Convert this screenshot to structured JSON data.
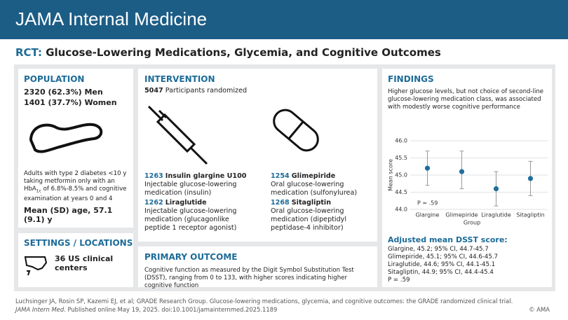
{
  "header": {
    "journal": "JAMA Internal Medicine"
  },
  "title": {
    "prefix": "RCT:",
    "text": "Glucose-Lowering Medications, Glycemia, and Cognitive Outcomes"
  },
  "population": {
    "heading": "POPULATION",
    "men": "2320 (62.3%) Men",
    "women": "1401 (37.7%) Women",
    "description": [
      "Adults with type 2 diabetes <10 y taking metformin only with an HbA",
      "1c",
      " of 6.8%-8.5% and cognitive examination at years 0 and 4"
    ],
    "age": "Mean (SD) age, 57.1 (9.1) y"
  },
  "settings": {
    "heading": "SETTINGS / LOCATIONS",
    "text": "36 US clinical centers"
  },
  "intervention": {
    "heading": "INTERVENTION",
    "count": "5047",
    "text": "Participants randomized",
    "arms": [
      {
        "n": "1263",
        "name": "Insulin glargine U100",
        "desc": "Injectable glucose-lowering medication (insulin)"
      },
      {
        "n": "1254",
        "name": "Glimepiride",
        "desc": "Oral glucose-lowering medication (sulfonylurea)"
      },
      {
        "n": "1262",
        "name": "Liraglutide",
        "desc": "Injectable glucose-lowering medication (glucagonlike peptide 1 receptor agonist)"
      },
      {
        "n": "1268",
        "name": "Sitagliptin",
        "desc": "Oral glucose-lowering medication (dipeptidyl peptidase-4 inhibitor)"
      }
    ]
  },
  "primary_outcome": {
    "heading": "PRIMARY OUTCOME",
    "text": "Cognitive function as measured by the Digit Symbol Substitution Test (DSST), ranging from 0 to 133, with higher scores indicating higher cognitive function"
  },
  "findings": {
    "heading": "FINDINGS",
    "text": "Higher glucose levels, but not choice of second-line glucose-lowering medication class, was associated with modestly worse cognitive performance",
    "adjusted_heading": "Adjusted mean DSST score:",
    "adjusted_lines": [
      "Glargine, 45.2; 95% CI, 44.7-45.7",
      "Glimepiride, 45.1; 95% CI, 44.6-45.7",
      "Liraglutide, 44.6; 95% CI, 44.1-45.1",
      "Sitagliptin, 44.9; 95% CI, 44.4-45.4",
      "P = .59"
    ]
  },
  "chart_data": {
    "type": "errorpoint",
    "x_label": "Group",
    "y_label": "Mean score",
    "annotation": "P = .59",
    "categories": [
      "Glargine",
      "Glimepiride",
      "Liraglutide",
      "Sitagliptin"
    ],
    "series": [
      {
        "color": "#1f6e9c",
        "values": [
          45.2,
          45.1,
          44.6,
          44.9
        ],
        "ci_low": [
          44.7,
          44.6,
          44.1,
          44.4
        ],
        "ci_high": [
          45.7,
          45.7,
          45.1,
          45.4
        ]
      }
    ],
    "ylim": [
      44.0,
      46.0
    ],
    "yticks": [
      {
        "value": 44.0,
        "label": "44.0"
      },
      44.5,
      {
        "value": 45.0,
        "label": "45.0"
      },
      45.5,
      {
        "value": 46.0,
        "label": "46.0"
      }
    ],
    "grid": true
  },
  "footer": {
    "citation": "Luchsinger JA, Rosin SP, Kazemi EJ, et al; GRADE Research Group. Glucose-lowering medications, glycemia, and cognitive outcomes: the GRADE randomized clinical trial.",
    "journal_abbrev": "JAMA Intern Med",
    "published": ". Published online May 19, 2025. doi:10.1001/jamainternmed.2025.1189",
    "copyright": "© AMA"
  }
}
